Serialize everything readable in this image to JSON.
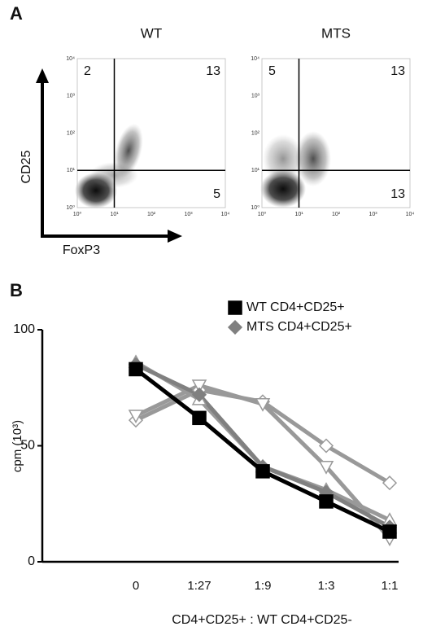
{
  "panel_a": {
    "label": "A",
    "y_axis_label": "CD25",
    "x_axis_label": "FoxP3",
    "ticks": [
      {
        "value": 1,
        "label": "10⁰"
      },
      {
        "value": 10,
        "label": "10¹"
      },
      {
        "value": 100,
        "label": "10²"
      },
      {
        "value": 1000,
        "label": "10³"
      },
      {
        "value": 10000,
        "label": "10⁴"
      }
    ],
    "plots": [
      {
        "title": "WT",
        "upper_left": 2,
        "upper_right": 13,
        "lower_right": 5
      },
      {
        "title": "MTS",
        "upper_left": 5,
        "upper_right": 13,
        "lower_right": 13
      }
    ]
  },
  "chart_data": {
    "type": "line",
    "label": "B",
    "x_label": "CD4+CD25+ : WT CD4+CD25-",
    "y_label": "cpm (10³)",
    "categories": [
      "0",
      "1:27",
      "1:9",
      "1:3",
      "1:1"
    ],
    "ylim": [
      0,
      100
    ],
    "yticks": [
      0,
      50,
      100
    ],
    "legend": "top-right",
    "series": [
      {
        "name": "WT CD4+CD25+",
        "color": "#000000",
        "marker": "square",
        "values": [
          83,
          62,
          39,
          26,
          13
        ]
      },
      {
        "name": "MTS CD4+CD25+",
        "color": "#808080",
        "marker": "diamond",
        "values": [
          85,
          72,
          41,
          30,
          15
        ]
      },
      {
        "color": "#999999",
        "marker": "triangle-open",
        "values": [
          86,
          70,
          41,
          31,
          18
        ]
      },
      {
        "color": "#999999",
        "marker": "triangle-down-open",
        "values": [
          63,
          76,
          68,
          41,
          10
        ]
      },
      {
        "color": "#999999",
        "marker": "diamond-open",
        "values": [
          61,
          74,
          69,
          50,
          34
        ]
      }
    ]
  }
}
